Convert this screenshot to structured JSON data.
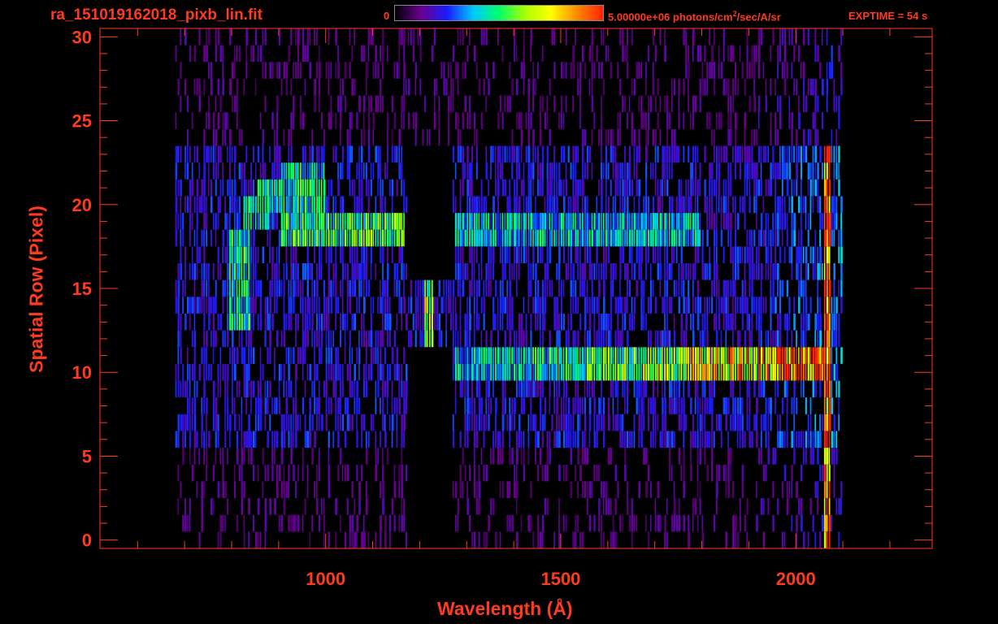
{
  "header": {
    "filename": "ra_151019162018_pixb_lin.fit",
    "colorbar_min": "0",
    "colorbar_max_value": "5.00000e+06",
    "colorbar_units": "photons/cm",
    "colorbar_units_sup": "2",
    "colorbar_units_tail": "/sec/A/sr",
    "exptime": "EXPTIME = 54 s",
    "colormap": [
      "#000000",
      "#6a0090",
      "#1a1aff",
      "#00c8ff",
      "#00ff6a",
      "#aaff00",
      "#ffff00",
      "#ff8800",
      "#ff2200"
    ]
  },
  "colors": {
    "axis": "#ff3b1f",
    "background": "#000000"
  },
  "chart_data": {
    "type": "heatmap",
    "title": "",
    "xlabel": "Wavelength (Å)",
    "ylabel": "Spatial Row (Pixel)",
    "xlim": [
      520,
      2290
    ],
    "ylim": [
      -0.5,
      30.5
    ],
    "xticks": [
      1000,
      1500,
      2000
    ],
    "yticks": [
      0,
      5,
      10,
      15,
      20,
      25,
      30
    ],
    "value_range": [
      0,
      5000000
    ],
    "features": [
      {
        "name": "Lyman-alpha line",
        "x": 1216,
        "y_range": [
          12,
          16
        ],
        "level": 0.6
      },
      {
        "name": "horizontal band",
        "x_range": [
          1270,
          2070
        ],
        "y_range": [
          10,
          12
        ],
        "level": "increasing to max near 2000"
      },
      {
        "name": "horizontal band",
        "x_range": [
          900,
          1170
        ],
        "y_range": [
          18,
          20
        ],
        "level": 0.5
      },
      {
        "name": "horizontal band",
        "x_range": [
          1270,
          1800
        ],
        "y_range": [
          18,
          20
        ],
        "level": 0.4
      },
      {
        "name": "curved arc",
        "x_range": [
          780,
          1000
        ],
        "y_range": [
          13,
          23
        ],
        "level": 0.45
      },
      {
        "name": "masked region",
        "x_range": [
          1170,
          1270
        ],
        "y_range": [
          16,
          24
        ]
      },
      {
        "name": "masked region",
        "x_range": [
          1170,
          1270
        ],
        "y_range": [
          -0.5,
          12
        ]
      },
      {
        "name": "detector edge",
        "x": 2065,
        "y_range": [
          0,
          24
        ],
        "level": "high"
      }
    ]
  }
}
